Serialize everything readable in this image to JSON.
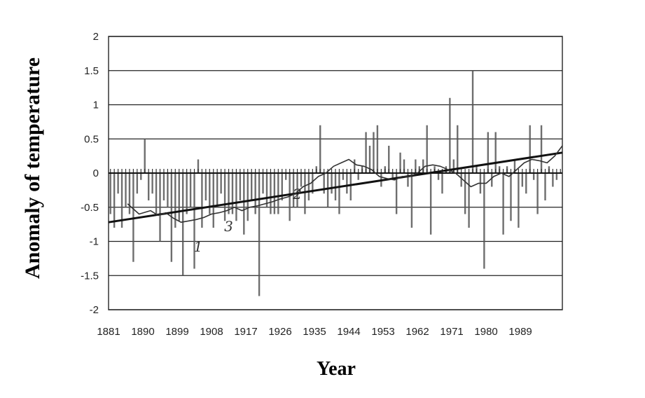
{
  "chart_data": {
    "type": "bar",
    "title": "",
    "xlabel": "Year",
    "ylabel": "Anomaly of temperature",
    "ylim": [
      -2,
      2
    ],
    "y_ticks": [
      2,
      1.5,
      1,
      0.5,
      0,
      -0.5,
      -1,
      -1.5,
      -2
    ],
    "y_tick_labels": [
      "2",
      "1.5",
      "1",
      "0.5",
      "0",
      "-0.5",
      "-1",
      "-1.5",
      "-2"
    ],
    "x_tick_labels": [
      "1881",
      "1890",
      "1899",
      "1908",
      "1917",
      "1926",
      "1935",
      "1944",
      "1953",
      "1962",
      "1971",
      "1980",
      "1989"
    ],
    "x_range": [
      1881,
      2000
    ],
    "grid": true,
    "legend": "none",
    "curve_labels": [
      "1",
      "2",
      "3"
    ],
    "series": [
      {
        "type": "bar",
        "x": [
          1881,
          1882,
          1883,
          1884,
          1885,
          1886,
          1887,
          1888,
          1889,
          1890,
          1891,
          1892,
          1893,
          1894,
          1895,
          1896,
          1897,
          1898,
          1899,
          1900,
          1901,
          1902,
          1903,
          1904,
          1905,
          1906,
          1907,
          1908,
          1909,
          1910,
          1911,
          1912,
          1913,
          1914,
          1915,
          1916,
          1917,
          1918,
          1919,
          1920,
          1921,
          1922,
          1923,
          1924,
          1925,
          1926,
          1927,
          1928,
          1929,
          1930,
          1931,
          1932,
          1933,
          1934,
          1935,
          1936,
          1937,
          1938,
          1939,
          1940,
          1941,
          1942,
          1943,
          1944,
          1945,
          1946,
          1947,
          1948,
          1949,
          1950,
          1951,
          1952,
          1953,
          1954,
          1955,
          1956,
          1957,
          1958,
          1959,
          1960,
          1961,
          1962,
          1963,
          1964,
          1965,
          1966,
          1967,
          1968,
          1969,
          1970,
          1971,
          1972,
          1973,
          1974,
          1975,
          1976,
          1977,
          1978,
          1979,
          1980,
          1981,
          1982,
          1983,
          1984,
          1985,
          1986,
          1987,
          1988,
          1989,
          1990,
          1991,
          1992,
          1993,
          1994,
          1995,
          1996,
          1997,
          1998
        ],
        "values": [
          -0.6,
          -0.8,
          -0.3,
          -0.8,
          -0.5,
          -0.6,
          -1.3,
          -0.3,
          -0.1,
          0.5,
          -0.4,
          -0.3,
          -0.6,
          -1.0,
          -0.4,
          -0.5,
          -1.3,
          -0.8,
          -0.7,
          -1.5,
          -0.6,
          -0.5,
          -1.4,
          0.2,
          -0.8,
          -0.4,
          -0.6,
          -0.8,
          -0.5,
          -0.3,
          -0.7,
          -0.6,
          -0.6,
          -0.7,
          -0.4,
          -0.9,
          -0.7,
          -0.4,
          -0.6,
          -1.8,
          -0.3,
          -0.5,
          -0.6,
          -0.6,
          -0.6,
          -0.4,
          -0.1,
          -0.7,
          -0.5,
          -0.5,
          -0.2,
          -0.6,
          -0.4,
          -0.3,
          0.1,
          0.7,
          -0.3,
          -0.5,
          -0.3,
          -0.4,
          -0.6,
          -0.1,
          -0.3,
          -0.4,
          0.2,
          -0.1,
          0.1,
          0.6,
          0.4,
          0.6,
          0.7,
          -0.2,
          0.1,
          0.4,
          -0.1,
          -0.6,
          0.3,
          0.2,
          -0.2,
          -0.8,
          0.2,
          0.1,
          0.2,
          0.7,
          -0.9,
          0.1,
          -0.1,
          -0.3,
          0.1,
          1.1,
          0.2,
          0.7,
          -0.2,
          -0.6,
          -0.8,
          1.5,
          0.1,
          -0.3,
          -1.4,
          0.6,
          -0.2,
          0.6,
          0.1,
          -0.9,
          0.1,
          -0.7,
          0.2,
          -0.8,
          -0.2,
          -0.3,
          0.7,
          -0.1,
          -0.6,
          0.7,
          -0.4,
          0.1,
          -0.2,
          -0.1
        ],
        "color": "#555555"
      },
      {
        "type": "line",
        "name": "1",
        "x": [
          1881,
          2000
        ],
        "values": [
          -0.72,
          0.3
        ],
        "color": "#111111"
      },
      {
        "type": "line",
        "name": "2",
        "x": [
          1886,
          1889,
          1892,
          1894,
          1896,
          1898,
          1900,
          1902,
          1904,
          1906,
          1908,
          1910,
          1912,
          1914,
          1916,
          1918,
          1920,
          1922,
          1924,
          1926,
          1928,
          1930,
          1932,
          1934,
          1936,
          1938,
          1940,
          1942,
          1944,
          1946,
          1948,
          1950,
          1952,
          1954,
          1956,
          1958,
          1960,
          1962,
          1964,
          1966,
          1968,
          1970,
          1972,
          1974,
          1976,
          1978,
          1980,
          1982,
          1984,
          1986,
          1988,
          1990,
          1992,
          1994,
          1996,
          1998,
          2000
        ],
        "values": [
          -0.45,
          -0.6,
          -0.55,
          -0.62,
          -0.58,
          -0.66,
          -0.72,
          -0.7,
          -0.68,
          -0.65,
          -0.6,
          -0.58,
          -0.55,
          -0.5,
          -0.55,
          -0.5,
          -0.48,
          -0.45,
          -0.42,
          -0.38,
          -0.35,
          -0.3,
          -0.2,
          -0.15,
          -0.05,
          0.0,
          0.1,
          0.15,
          0.2,
          0.12,
          0.1,
          0.05,
          -0.05,
          -0.08,
          -0.1,
          -0.05,
          -0.05,
          0.0,
          0.1,
          0.12,
          0.1,
          0.05,
          0.0,
          -0.1,
          -0.2,
          -0.15,
          -0.15,
          -0.05,
          0.0,
          -0.05,
          0.05,
          0.15,
          0.2,
          0.18,
          0.15,
          0.25,
          0.4
        ],
        "color": "#333333"
      }
    ]
  }
}
